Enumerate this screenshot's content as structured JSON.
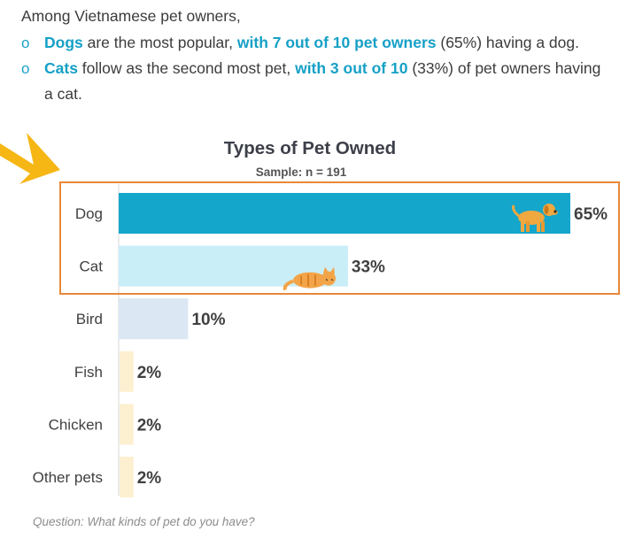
{
  "intro": "Among Vietnamese pet owners,",
  "bullets": [
    {
      "marker": "o",
      "lead": "Dogs",
      "text1": " are the most popular, ",
      "highlight": "with 7 out of 10 pet owners",
      "text2": " (65%) having a dog."
    },
    {
      "marker": "o",
      "lead": "Cats",
      "text1": " follow as the second most pet, ",
      "highlight": "with 3 out of 10",
      "text2": " (33%) of pet owners having a cat."
    }
  ],
  "chart_data": {
    "type": "bar",
    "orientation": "horizontal",
    "title": "Types of Pet Owned",
    "subtitle": "Sample: n = 191",
    "categories": [
      "Dog",
      "Cat",
      "Bird",
      "Fish",
      "Chicken",
      "Other pets"
    ],
    "values": [
      65,
      33,
      10,
      2,
      2,
      2
    ],
    "value_labels": [
      "65%",
      "33%",
      "10%",
      "2%",
      "2%",
      "2%"
    ],
    "colors": [
      "#15a6cb",
      "#c9eef7",
      "#dbe8f4",
      "#fdf0d0",
      "#fdf0d0",
      "#fdf0d0"
    ],
    "xlim": [
      0,
      65
    ],
    "highlighted_categories": [
      "Dog",
      "Cat"
    ],
    "highlight_color": "#e8883a",
    "icons": [
      "dog-icon",
      "cat-icon"
    ]
  },
  "question": "Question: What kinds of pet do you have?"
}
